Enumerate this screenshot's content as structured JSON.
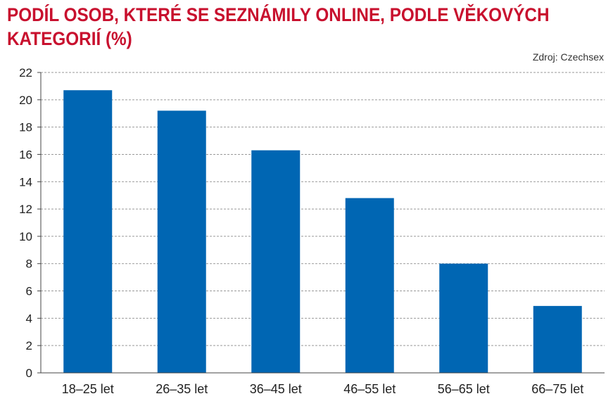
{
  "title_line1": "PODÍL OSOB, KTERÉ SE SEZNÁMILY ONLINE, PODLE VĚKOVÝCH",
  "title_line2": "KATEGORIÍ (%)",
  "source": "Zdroj: Czechsex",
  "colors": {
    "bar": "#0066b3",
    "title": "#c8102e",
    "grid": "#999999"
  },
  "chart_data": {
    "type": "bar",
    "title": "PODÍL OSOB, KTERÉ SE SEZNÁMILY ONLINE, PODLE VĚKOVÝCH KATEGORIÍ (%)",
    "categories": [
      "18–25 let",
      "26–35 let",
      "36–45 let",
      "46–55 let",
      "56–65 let",
      "66–75 let"
    ],
    "values": [
      20.7,
      19.2,
      16.3,
      12.8,
      8.0,
      4.9
    ],
    "xlabel": "",
    "ylabel": "",
    "ylim": [
      0,
      22
    ],
    "yticks": [
      "0",
      "2",
      "4",
      "6",
      "8",
      "10",
      "12",
      "14",
      "16",
      "18",
      "20",
      "22"
    ],
    "grid": true,
    "legend": "none"
  }
}
